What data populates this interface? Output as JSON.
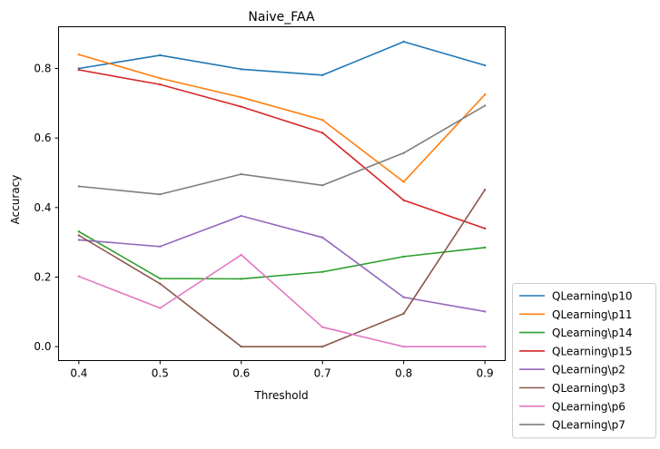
{
  "chart_data": {
    "type": "line",
    "title": "Naive_FAA",
    "xlabel": "Threshold",
    "ylabel": "Accuracy",
    "x": [
      0.4,
      0.5,
      0.6,
      0.7,
      0.8,
      0.9
    ],
    "x_ticks": [
      "0.4",
      "0.5",
      "0.6",
      "0.7",
      "0.8",
      "0.9"
    ],
    "y_ticks": [
      "0.0",
      "0.2",
      "0.4",
      "0.6",
      "0.8"
    ],
    "xlim": [
      0.375,
      0.925
    ],
    "ylim": [
      -0.04,
      0.92
    ],
    "grid": false,
    "legend_position": "outside lower right",
    "series": [
      {
        "name": "QLearning\\p10",
        "color": "#1f77b4",
        "values": [
          0.8,
          0.838,
          0.798,
          0.781,
          0.877,
          0.809
        ]
      },
      {
        "name": "QLearning\\p11",
        "color": "#ff7f0e",
        "values": [
          0.84,
          0.772,
          0.717,
          0.652,
          0.474,
          0.725
        ]
      },
      {
        "name": "QLearning\\p14",
        "color": "#2ca02c",
        "values": [
          0.331,
          0.196,
          0.195,
          0.215,
          0.259,
          0.285
        ]
      },
      {
        "name": "QLearning\\p15",
        "color": "#d62728",
        "values": [
          0.796,
          0.754,
          0.69,
          0.615,
          0.421,
          0.34
        ]
      },
      {
        "name": "QLearning\\p2",
        "color": "#9467bd",
        "values": [
          0.307,
          0.288,
          0.376,
          0.314,
          0.142,
          0.101
        ]
      },
      {
        "name": "QLearning\\p3",
        "color": "#8c564b",
        "values": [
          0.32,
          0.181,
          0.0,
          0.0,
          0.095,
          0.451
        ]
      },
      {
        "name": "QLearning\\p6",
        "color": "#e377c2",
        "values": [
          0.202,
          0.111,
          0.264,
          0.056,
          0.0,
          0.0
        ]
      },
      {
        "name": "QLearning\\p7",
        "color": "#7f7f7f",
        "values": [
          0.461,
          0.438,
          0.496,
          0.464,
          0.557,
          0.693
        ]
      }
    ]
  }
}
